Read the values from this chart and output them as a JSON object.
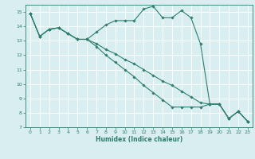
{
  "xlabel": "Humidex (Indice chaleur)",
  "xlim": [
    -0.5,
    23.5
  ],
  "ylim": [
    7,
    15.5
  ],
  "xticks": [
    0,
    1,
    2,
    3,
    4,
    5,
    6,
    7,
    8,
    9,
    10,
    11,
    12,
    13,
    14,
    15,
    16,
    17,
    18,
    19,
    20,
    21,
    22,
    23
  ],
  "yticks": [
    7,
    8,
    9,
    10,
    11,
    12,
    13,
    14,
    15
  ],
  "line_color": "#2e7d6e",
  "bg_color": "#d8eef0",
  "grid_color": "#ffffff",
  "lines": [
    {
      "x": [
        0,
        1,
        2,
        3,
        4,
        5,
        6,
        7,
        8,
        9,
        10,
        11,
        12,
        13,
        14,
        15,
        16,
        17,
        18,
        19,
        20,
        21,
        22,
        23
      ],
      "y": [
        14.9,
        13.3,
        13.8,
        13.9,
        13.5,
        13.1,
        13.1,
        13.6,
        14.1,
        14.4,
        14.4,
        14.4,
        15.2,
        15.4,
        14.6,
        14.6,
        15.1,
        14.6,
        12.8,
        8.6,
        8.6,
        7.6,
        8.1,
        7.4
      ]
    },
    {
      "x": [
        0,
        1,
        2,
        3,
        4,
        5,
        6,
        7,
        8,
        9,
        10,
        11,
        12,
        13,
        14,
        15,
        16,
        17,
        18,
        19,
        20,
        21,
        22,
        23
      ],
      "y": [
        14.9,
        13.3,
        13.8,
        13.9,
        13.5,
        13.1,
        13.1,
        12.8,
        12.4,
        12.1,
        11.7,
        11.4,
        11.0,
        10.6,
        10.2,
        9.9,
        9.5,
        9.1,
        8.7,
        8.6,
        8.6,
        7.6,
        8.1,
        7.4
      ]
    },
    {
      "x": [
        0,
        1,
        2,
        3,
        4,
        5,
        6,
        7,
        8,
        9,
        10,
        11,
        12,
        13,
        14,
        15,
        16,
        17,
        18,
        19,
        20,
        21,
        22,
        23
      ],
      "y": [
        14.9,
        13.3,
        13.8,
        13.9,
        13.5,
        13.1,
        13.1,
        12.6,
        12.0,
        11.5,
        11.0,
        10.5,
        9.9,
        9.4,
        8.9,
        8.4,
        8.4,
        8.4,
        8.4,
        8.6,
        8.6,
        7.6,
        8.1,
        7.4
      ]
    }
  ]
}
